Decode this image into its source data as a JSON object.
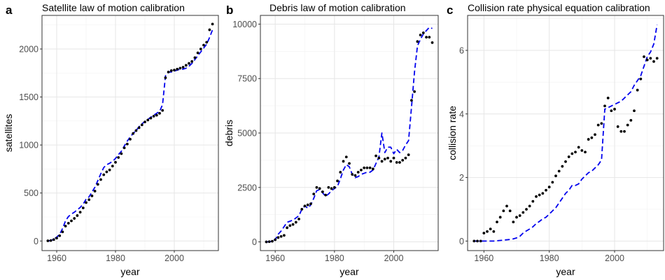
{
  "chart_data": [
    {
      "type": "scatter",
      "panel_label": "a",
      "title": "Satellite law of motion calibration",
      "xlabel": "year",
      "ylabel": "satellites",
      "xlim": [
        1955,
        2015
      ],
      "ylim": [
        -100,
        2350
      ],
      "xticks": [
        1960,
        1980,
        2000
      ],
      "yticks": [
        0,
        500,
        1000,
        1500,
        2000
      ],
      "grid": true,
      "series": [
        {
          "role": "observed",
          "mark": "points",
          "color": "#000000",
          "x": [
            1957,
            1958,
            1959,
            1960,
            1961,
            1962,
            1963,
            1964,
            1965,
            1966,
            1967,
            1968,
            1969,
            1970,
            1971,
            1972,
            1973,
            1974,
            1975,
            1976,
            1977,
            1978,
            1979,
            1980,
            1981,
            1982,
            1983,
            1984,
            1985,
            1986,
            1987,
            1988,
            1989,
            1990,
            1991,
            1992,
            1993,
            1994,
            1995,
            1996,
            1997,
            1998,
            1999,
            2000,
            2001,
            2002,
            2003,
            2004,
            2005,
            2006,
            2007,
            2008,
            2009,
            2010,
            2011,
            2012,
            2013
          ],
          "y": [
            2,
            5,
            15,
            30,
            55,
            95,
            155,
            185,
            210,
            235,
            265,
            300,
            345,
            400,
            430,
            470,
            520,
            590,
            640,
            690,
            720,
            740,
            780,
            820,
            870,
            910,
            970,
            1010,
            1060,
            1120,
            1150,
            1180,
            1210,
            1240,
            1260,
            1280,
            1300,
            1310,
            1330,
            1360,
            1700,
            1760,
            1775,
            1780,
            1790,
            1800,
            1810,
            1830,
            1850,
            1870,
            1910,
            1960,
            2000,
            2040,
            2070,
            2200,
            2260
          ]
        },
        {
          "role": "fitted",
          "mark": "dashed-line",
          "color": "#0000ee",
          "x": [
            1957,
            1958,
            1959,
            1960,
            1961,
            1962,
            1963,
            1964,
            1965,
            1966,
            1967,
            1968,
            1969,
            1970,
            1971,
            1972,
            1973,
            1974,
            1975,
            1976,
            1977,
            1978,
            1979,
            1980,
            1981,
            1982,
            1983,
            1984,
            1985,
            1986,
            1987,
            1988,
            1989,
            1990,
            1991,
            1992,
            1993,
            1994,
            1995,
            1996,
            1997,
            1998,
            1999,
            2000,
            2001,
            2002,
            2003,
            2004,
            2005,
            2006,
            2007,
            2008,
            2009,
            2010,
            2011,
            2012,
            2013
          ],
          "y": [
            0,
            5,
            20,
            40,
            70,
            130,
            210,
            255,
            280,
            300,
            325,
            350,
            385,
            435,
            460,
            510,
            560,
            630,
            700,
            765,
            795,
            810,
            830,
            860,
            900,
            935,
            990,
            1040,
            1085,
            1120,
            1150,
            1190,
            1220,
            1245,
            1265,
            1290,
            1310,
            1330,
            1350,
            1420,
            1720,
            1760,
            1760,
            1770,
            1780,
            1790,
            1790,
            1800,
            1820,
            1850,
            1890,
            1930,
            1970,
            2010,
            2050,
            2120,
            2200
          ]
        }
      ]
    },
    {
      "type": "scatter",
      "panel_label": "b",
      "title": "Debris law of motion calibration",
      "xlabel": "year",
      "ylabel": "debris",
      "xlim": [
        1955,
        2015
      ],
      "ylim": [
        -400,
        10400
      ],
      "xticks": [
        1960,
        1980,
        2000
      ],
      "yticks": [
        0,
        2500,
        5000,
        7500,
        10000
      ],
      "grid": true,
      "series": [
        {
          "role": "observed",
          "mark": "points",
          "color": "#000000",
          "x": [
            1957,
            1958,
            1959,
            1960,
            1961,
            1962,
            1963,
            1964,
            1965,
            1966,
            1967,
            1968,
            1969,
            1970,
            1971,
            1972,
            1973,
            1974,
            1975,
            1976,
            1977,
            1978,
            1979,
            1980,
            1981,
            1982,
            1983,
            1984,
            1985,
            1986,
            1987,
            1988,
            1989,
            1990,
            1991,
            1992,
            1993,
            1994,
            1995,
            1996,
            1997,
            1998,
            1999,
            2000,
            2001,
            2002,
            2003,
            2004,
            2005,
            2006,
            2007,
            2008,
            2009,
            2010,
            2011,
            2012,
            2013
          ],
          "y": [
            0,
            10,
            30,
            100,
            200,
            250,
            300,
            650,
            750,
            800,
            900,
            1050,
            1500,
            1650,
            1700,
            1750,
            2200,
            2500,
            2450,
            2300,
            2150,
            2500,
            2450,
            2500,
            2800,
            3200,
            3700,
            3900,
            3600,
            3100,
            3050,
            3200,
            3300,
            3400,
            3400,
            3400,
            3350,
            3950,
            3850,
            3700,
            3800,
            3850,
            3700,
            3850,
            3650,
            3650,
            3750,
            3850,
            4000,
            6500,
            6900,
            9200,
            9500,
            9600,
            9400,
            9400,
            9150
          ]
        },
        {
          "role": "fitted",
          "mark": "dashed-line",
          "color": "#0000ee",
          "x": [
            1957,
            1958,
            1959,
            1960,
            1961,
            1962,
            1963,
            1964,
            1965,
            1966,
            1967,
            1968,
            1969,
            1970,
            1971,
            1972,
            1973,
            1974,
            1975,
            1976,
            1977,
            1978,
            1979,
            1980,
            1981,
            1982,
            1983,
            1984,
            1985,
            1986,
            1987,
            1988,
            1989,
            1990,
            1991,
            1992,
            1993,
            1994,
            1995,
            1996,
            1997,
            1998,
            1999,
            2000,
            2001,
            2002,
            2003,
            2004,
            2005,
            2006,
            2007,
            2008,
            2009,
            2010,
            2011,
            2012,
            2013
          ],
          "y": [
            0,
            10,
            30,
            100,
            350,
            500,
            700,
            900,
            950,
            1000,
            1100,
            1200,
            1500,
            1650,
            1550,
            1700,
            2000,
            2350,
            2400,
            2250,
            2100,
            2200,
            2350,
            2450,
            2550,
            2900,
            3300,
            3550,
            3450,
            3100,
            2950,
            3000,
            3100,
            3150,
            3200,
            3200,
            3300,
            3600,
            3900,
            5000,
            4100,
            4350,
            4350,
            4050,
            4250,
            4100,
            4200,
            4450,
            4650,
            6200,
            7800,
            9000,
            9300,
            9550,
            9700,
            9850,
            9800
          ]
        }
      ]
    },
    {
      "type": "scatter",
      "panel_label": "c",
      "title": "Collision rate physical equation calibration",
      "xlabel": "year",
      "ylabel": "collision rate",
      "xlim": [
        1955,
        2015
      ],
      "ylim": [
        -0.3,
        7.1
      ],
      "xticks": [
        1960,
        1980,
        2000
      ],
      "yticks": [
        0,
        2,
        4,
        6
      ],
      "grid": true,
      "series": [
        {
          "role": "observed",
          "mark": "points",
          "color": "#000000",
          "x": [
            1957,
            1958,
            1959,
            1960,
            1961,
            1962,
            1963,
            1964,
            1965,
            1966,
            1967,
            1968,
            1969,
            1970,
            1971,
            1972,
            1973,
            1974,
            1975,
            1976,
            1977,
            1978,
            1979,
            1980,
            1981,
            1982,
            1983,
            1984,
            1985,
            1986,
            1987,
            1988,
            1989,
            1990,
            1991,
            1992,
            1993,
            1994,
            1995,
            1996,
            1997,
            1998,
            1999,
            2000,
            2001,
            2002,
            2003,
            2004,
            2005,
            2006,
            2007,
            2008,
            2009,
            2010,
            2011,
            2012,
            2013
          ],
          "y": [
            0,
            0,
            0,
            0.25,
            0.3,
            0.38,
            0.3,
            0.6,
            0.75,
            0.95,
            1.1,
            0.95,
            0.6,
            0.75,
            0.8,
            0.9,
            1.0,
            1.1,
            1.25,
            1.4,
            1.45,
            1.5,
            1.6,
            1.7,
            1.85,
            2.05,
            2.2,
            2.35,
            2.5,
            2.65,
            2.75,
            2.8,
            2.95,
            2.85,
            2.8,
            3.2,
            3.25,
            3.35,
            3.65,
            3.7,
            4.25,
            4.5,
            4.1,
            4.15,
            3.6,
            3.45,
            3.45,
            3.65,
            3.8,
            4.1,
            4.75,
            5.1,
            5.8,
            5.7,
            5.75,
            5.65,
            5.75
          ]
        },
        {
          "role": "fitted",
          "mark": "dashed-line",
          "color": "#0000ee",
          "x": [
            1957,
            1958,
            1959,
            1960,
            1961,
            1962,
            1963,
            1964,
            1965,
            1966,
            1967,
            1968,
            1969,
            1970,
            1971,
            1972,
            1973,
            1974,
            1975,
            1976,
            1977,
            1978,
            1979,
            1980,
            1981,
            1982,
            1983,
            1984,
            1985,
            1986,
            1987,
            1988,
            1989,
            1990,
            1991,
            1992,
            1993,
            1994,
            1995,
            1996,
            1997,
            1998,
            1999,
            2000,
            2001,
            2002,
            2003,
            2004,
            2005,
            2006,
            2007,
            2008,
            2009,
            2010,
            2011,
            2012,
            2013
          ],
          "y": [
            0,
            0,
            0,
            0,
            0,
            0,
            0,
            0.01,
            0.02,
            0.03,
            0.04,
            0.05,
            0.07,
            0.1,
            0.15,
            0.25,
            0.32,
            0.38,
            0.45,
            0.55,
            0.62,
            0.7,
            0.75,
            0.85,
            0.95,
            1.05,
            1.2,
            1.35,
            1.5,
            1.6,
            1.75,
            1.75,
            1.8,
            1.95,
            2.05,
            2.15,
            2.2,
            2.3,
            2.4,
            2.55,
            4.15,
            4.2,
            4.25,
            4.3,
            4.35,
            4.4,
            4.5,
            4.6,
            4.7,
            4.9,
            5.05,
            5.2,
            5.5,
            5.8,
            5.95,
            6.2,
            6.8
          ]
        }
      ]
    }
  ]
}
